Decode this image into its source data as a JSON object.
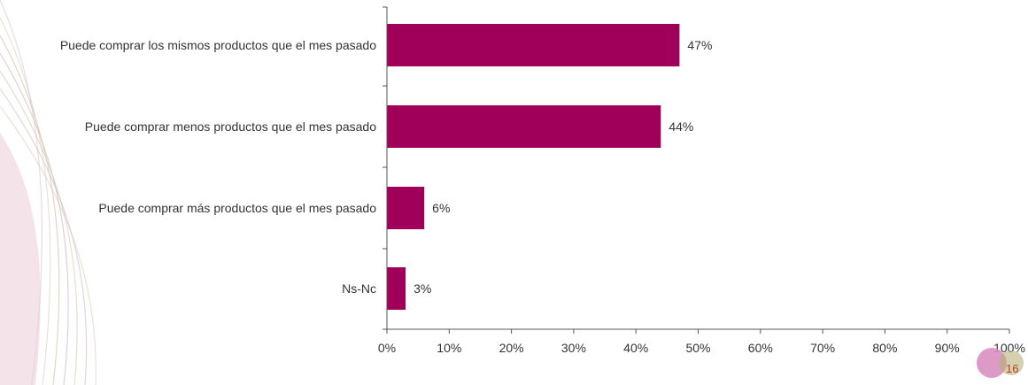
{
  "chart_data": {
    "type": "bar",
    "orientation": "horizontal",
    "categories": [
      "Puede comprar los mismos productos que el mes pasado",
      "Puede comprar menos productos que el mes pasado",
      "Puede comprar más productos que el mes pasado",
      "Ns-Nc"
    ],
    "values": [
      47,
      44,
      6,
      3
    ],
    "data_labels": [
      "47%",
      "44%",
      "6%",
      "3%"
    ],
    "xlim": [
      0,
      100
    ],
    "x_ticks": [
      "0%",
      "10%",
      "20%",
      "30%",
      "40%",
      "50%",
      "60%",
      "70%",
      "80%",
      "90%",
      "100%"
    ],
    "title": "",
    "xlabel": "",
    "ylabel": "",
    "grid": false,
    "legend": "none",
    "bar_color": "#a0005a"
  },
  "footer": {
    "page_number": "16"
  },
  "colors": {
    "accent": "#a0005a",
    "badge_pink": "#d98fc0",
    "badge_olive": "#b8b27a"
  }
}
